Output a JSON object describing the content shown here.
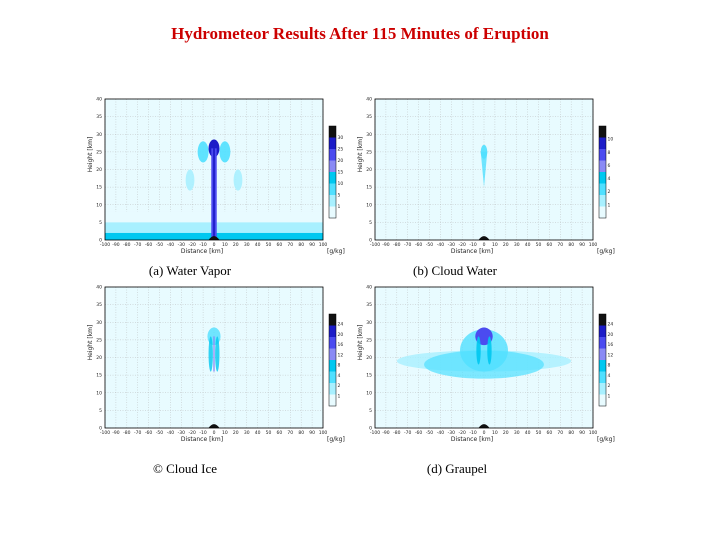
{
  "title": "Hydrometeor Results After 115 Minutes of Eruption",
  "chart_data": [
    {
      "type": "heatmap",
      "caption": "(a) Water Vapor",
      "xlabel": "Distance [km]",
      "ylabel": "Height [km]",
      "xlim": [
        -100,
        100
      ],
      "ylim": [
        0,
        40
      ],
      "xticks": [
        -100,
        -90,
        -80,
        -70,
        -60,
        -50,
        -40,
        -30,
        -20,
        -10,
        0,
        10,
        20,
        30,
        40,
        50,
        60,
        70,
        80,
        90,
        100
      ],
      "yticks": [
        0,
        5,
        10,
        15,
        20,
        25,
        30,
        35,
        40
      ],
      "colorbar_unit": "[g/kg]",
      "colorbar_ticks": [
        "30",
        "25",
        "20",
        "15",
        "10",
        "5",
        "1"
      ],
      "colors": [
        "#111111",
        "#1c1cc8",
        "#4b4bf0",
        "#8a8af5",
        "#00c8f0",
        "#50e0ff",
        "#a8f0ff",
        "#e8fbff"
      ]
    },
    {
      "type": "heatmap",
      "caption": "(b) Cloud Water",
      "xlabel": "Distance [km]",
      "ylabel": "Height [km]",
      "xlim": [
        -100,
        100
      ],
      "ylim": [
        0,
        40
      ],
      "xticks": [
        -100,
        -90,
        -80,
        -70,
        -60,
        -50,
        -40,
        -30,
        -20,
        -10,
        0,
        10,
        20,
        30,
        40,
        50,
        60,
        70,
        80,
        90,
        100
      ],
      "yticks": [
        0,
        5,
        10,
        15,
        20,
        25,
        30,
        35,
        40
      ],
      "colorbar_unit": "[g/kg]",
      "colorbar_ticks": [
        "10",
        "8",
        "6",
        "4",
        "2",
        "1"
      ],
      "colors": [
        "#111111",
        "#1c1cc8",
        "#4b4bf0",
        "#8a8af5",
        "#00c8f0",
        "#50e0ff",
        "#a8f0ff",
        "#e8fbff"
      ]
    },
    {
      "type": "heatmap",
      "caption": "© Cloud Ice",
      "xlabel": "Distance [km]",
      "ylabel": "Height [km]",
      "xlim": [
        -100,
        100
      ],
      "ylim": [
        0,
        40
      ],
      "xticks": [
        -100,
        -90,
        -80,
        -70,
        -60,
        -50,
        -40,
        -30,
        -20,
        -10,
        0,
        10,
        20,
        30,
        40,
        50,
        60,
        70,
        80,
        90,
        100
      ],
      "yticks": [
        0,
        5,
        10,
        15,
        20,
        25,
        30,
        35,
        40
      ],
      "colorbar_unit": "[g/kg]",
      "colorbar_ticks": [
        "24",
        "20",
        "16",
        "12",
        "8",
        "4",
        "2",
        "1"
      ],
      "colors": [
        "#111111",
        "#1c1cc8",
        "#4b4bf0",
        "#8a8af5",
        "#00c8f0",
        "#50e0ff",
        "#a8f0ff",
        "#e8fbff"
      ]
    },
    {
      "type": "heatmap",
      "caption": "(d) Graupel",
      "xlabel": "Distance [km]",
      "ylabel": "Height [km]",
      "xlim": [
        -100,
        100
      ],
      "ylim": [
        0,
        40
      ],
      "xticks": [
        -100,
        -90,
        -80,
        -70,
        -60,
        -50,
        -40,
        -30,
        -20,
        -10,
        0,
        10,
        20,
        30,
        40,
        50,
        60,
        70,
        80,
        90,
        100
      ],
      "yticks": [
        0,
        5,
        10,
        15,
        20,
        25,
        30,
        35,
        40
      ],
      "colorbar_unit": "[g/kg]",
      "colorbar_ticks": [
        "24",
        "20",
        "16",
        "12",
        "8",
        "4",
        "2",
        "1"
      ],
      "colors": [
        "#111111",
        "#1c1cc8",
        "#4b4bf0",
        "#8a8af5",
        "#00c8f0",
        "#50e0ff",
        "#a8f0ff",
        "#e8fbff"
      ]
    }
  ]
}
